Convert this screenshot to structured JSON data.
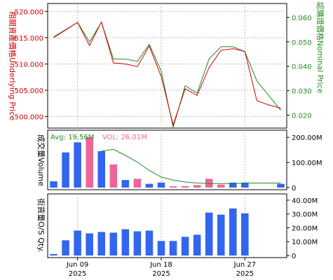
{
  "chart_data": [
    {
      "type": "line",
      "panel": "price",
      "x": [
        "Jun 05",
        "Jun 06",
        "Jun 09",
        "Jun 10",
        "Jun 11",
        "Jun 12",
        "Jun 13",
        "Jun 16",
        "Jun 17",
        "Jun 18",
        "Jun 19",
        "Jun 20",
        "Jun 23",
        "Jun 24",
        "Jun 25",
        "Jun 26",
        "Jun 27",
        "Jun 30",
        "Jul 01",
        "Jul 02"
      ],
      "series": [
        {
          "axis": "left",
          "values": [
            515.0,
            null,
            517.9,
            513.5,
            518.0,
            510.2,
            510.0,
            509.5,
            513.4,
            507.6,
            498.4,
            505.3,
            504.0,
            509.3,
            512.6,
            512.9,
            512.4,
            503.0,
            502.2,
            501.6
          ]
        },
        {
          "axis": "right",
          "values": [
            0.052,
            null,
            0.058,
            0.05,
            0.058,
            0.043,
            0.043,
            0.042,
            0.049,
            0.038,
            0.015,
            0.032,
            0.029,
            0.043,
            0.048,
            0.048,
            0.046,
            0.034,
            0.028,
            0.022
          ]
        }
      ],
      "ylabel_left": "相關資產價格Underlying Price",
      "ylabel_right": "認購證價格Nominal Price",
      "yticks_left": [
        "520.000",
        "515.000",
        "510.000",
        "505.000",
        "500.000"
      ],
      "yticks_right": [
        "0.060",
        "0.050",
        "0.040",
        "0.030",
        "0.020"
      ],
      "ylim_left": [
        497.8,
        521.5
      ],
      "ylim_right": [
        0.0147,
        0.0657
      ],
      "grid": true,
      "colors": {
        "underlying": "#d40000",
        "warrant": "#228b22"
      }
    },
    {
      "type": "bar",
      "panel": "volume",
      "x": [
        "Jun 05",
        "Jun 06",
        "Jun 09",
        "Jun 10",
        "Jun 11",
        "Jun 12",
        "Jun 13",
        "Jun 16",
        "Jun 17",
        "Jun 18",
        "Jun 19",
        "Jun 20",
        "Jun 23",
        "Jun 24",
        "Jun 25",
        "Jun 26",
        "Jun 27",
        "Jun 30",
        "Jul 01",
        "Jul 02"
      ],
      "values": [
        25,
        140,
        180,
        200,
        145,
        92,
        30,
        35,
        15,
        20,
        5,
        6,
        10,
        35,
        12,
        20,
        20,
        0,
        0,
        15
      ],
      "bar_colors": [
        "blue",
        "blue",
        "blue",
        "pink",
        "blue",
        "pink",
        "blue",
        "pink",
        "blue",
        "blue",
        "pink",
        "pink",
        "pink",
        "pink",
        "pink",
        "blue",
        "blue",
        "blue",
        "blue",
        "blue"
      ],
      "avg_line": [
        null,
        null,
        null,
        null,
        145,
        152,
        128,
        102,
        68,
        42,
        30,
        22,
        18,
        16,
        16,
        16,
        18,
        18,
        18,
        18
      ],
      "legend": {
        "avg": "Avg: 19.56M",
        "vol": "VOL: 26.01M"
      },
      "ylabel": "成交量Volume",
      "yticks": [
        "200.00M",
        "100.00M",
        "0"
      ],
      "ylim": [
        0,
        220
      ],
      "colors": {
        "blue": "#3366ee",
        "pink": "#ee6699",
        "avg_line": "#228b22"
      }
    },
    {
      "type": "bar",
      "panel": "outstanding",
      "x": [
        "Jun 05",
        "Jun 06",
        "Jun 09",
        "Jun 10",
        "Jun 11",
        "Jun 12",
        "Jun 13",
        "Jun 16",
        "Jun 17",
        "Jun 18",
        "Jun 19",
        "Jun 20",
        "Jun 23",
        "Jun 24",
        "Jun 25",
        "Jun 26",
        "Jun 27",
        "Jun 30",
        "Jul 01",
        "Jul 02"
      ],
      "values": [
        1,
        11,
        18,
        16,
        17,
        16.5,
        19,
        17.5,
        18,
        10.5,
        10.5,
        13.5,
        15,
        31,
        29.5,
        34,
        30.5,
        0,
        0,
        0
      ],
      "ylabel": "街貨量O/S Qty.",
      "yticks": [
        "40.00M",
        "30.00M",
        "20.00M",
        "10.00M",
        "0"
      ],
      "ylim": [
        0,
        43
      ],
      "colors": {
        "bar": "#3366ee"
      }
    }
  ],
  "x_axis": {
    "ticks": [
      {
        "label": "Jun 09",
        "year": "2025"
      },
      {
        "label": "Jun 18",
        "year": "2025"
      },
      {
        "label": "Jun 27",
        "year": "2025"
      }
    ]
  }
}
